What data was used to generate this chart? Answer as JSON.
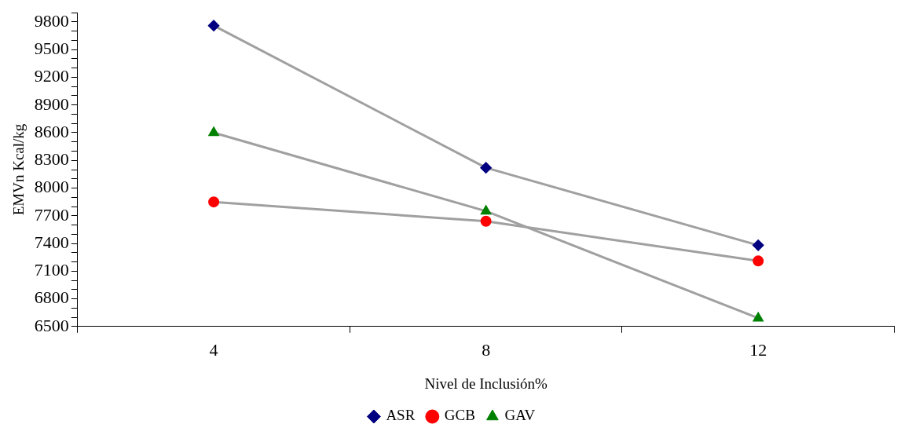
{
  "chart_data": {
    "type": "line",
    "xlabel": "Nivel de Inclusión%",
    "ylabel": "EMVn Kcal/kg",
    "categories": [
      "4",
      "8",
      "12"
    ],
    "series": [
      {
        "name": "ASR",
        "color": "#000080",
        "marker": "diamond",
        "values": [
          9760,
          8220,
          7380
        ]
      },
      {
        "name": "GCB",
        "color": "#ff0000",
        "marker": "circle",
        "values": [
          7850,
          7640,
          7210
        ]
      },
      {
        "name": "GAV",
        "color": "#008000",
        "marker": "triangle",
        "values": [
          8600,
          7750,
          6590
        ]
      }
    ],
    "ylim": [
      6500,
      9900
    ],
    "yticks": [
      6500,
      {
        "value": 6600,
        "label": null
      },
      {
        "value": 6700,
        "label": null
      },
      6800,
      {
        "value": 6900,
        "label": null
      },
      {
        "value": 7000,
        "label": null
      },
      7100,
      {
        "value": 7200,
        "label": null
      },
      {
        "value": 7300,
        "label": null
      },
      7400,
      {
        "value": 7500,
        "label": null
      },
      {
        "value": 7600,
        "label": null
      },
      7700,
      {
        "value": 7800,
        "label": null
      },
      {
        "value": 7900,
        "label": null
      },
      8000,
      {
        "value": 8100,
        "label": null
      },
      {
        "value": 8200,
        "label": null
      },
      8300,
      {
        "value": 8400,
        "label": null
      },
      {
        "value": 8500,
        "label": null
      },
      8600,
      {
        "value": 8700,
        "label": null
      },
      {
        "value": 8800,
        "label": null
      },
      8900,
      {
        "value": 9000,
        "label": null
      },
      {
        "value": 9100,
        "label": null
      },
      9200,
      {
        "value": 9300,
        "label": null
      },
      {
        "value": 9400,
        "label": null
      },
      9500,
      {
        "value": 9600,
        "label": null
      },
      {
        "value": 9700,
        "label": null
      },
      9800,
      {
        "value": 9900,
        "label": null
      }
    ],
    "grid": false,
    "legend": "bottom",
    "line_style": "solid"
  }
}
